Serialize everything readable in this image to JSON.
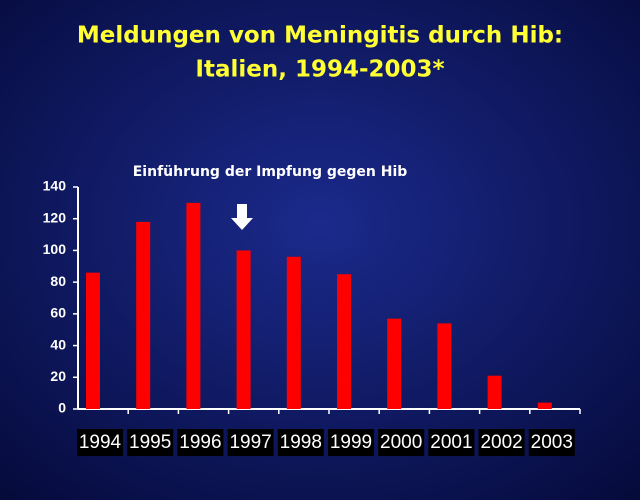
{
  "chart_data": {
    "type": "bar",
    "title": [
      "Meldungen von Meningitis durch Hib:",
      "Italien, 1994-2003*"
    ],
    "annotation": "Einführung der Impfung gegen Hib",
    "categories": [
      "1994",
      "1995",
      "1996",
      "1997",
      "1998",
      "1999",
      "2000",
      "2001",
      "2002",
      "2003"
    ],
    "values": [
      86,
      118,
      130,
      100,
      96,
      85,
      57,
      54,
      21,
      4
    ],
    "color": "#ff0000",
    "ylim": [
      0,
      140
    ],
    "yticks": [
      0,
      20,
      40,
      60,
      80,
      100,
      120,
      140
    ],
    "grid": false
  }
}
